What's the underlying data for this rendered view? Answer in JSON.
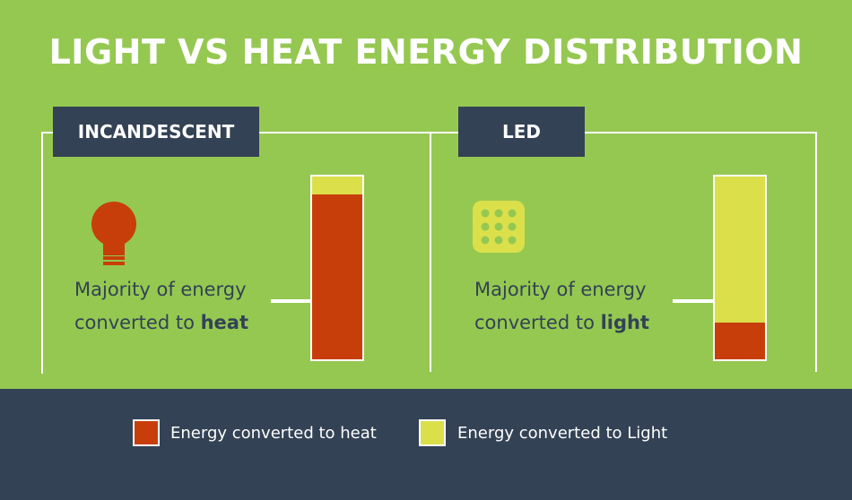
{
  "title": "LIGHT VS HEAT ENERGY DISTRIBUTION",
  "colors": {
    "background": "#95c851",
    "panel": "#334255",
    "heat": "#c83e0b",
    "light": "#dbe04a",
    "white": "#ffffff"
  },
  "panels": [
    {
      "label": "INCANDESCENT",
      "icon": "lightbulb-icon",
      "caption_line1": "Majority of energy",
      "caption_prefix": "converted to ",
      "caption_emphasis": "heat",
      "heat_fraction": 0.9,
      "light_fraction": 0.1
    },
    {
      "label": "LED",
      "icon": "led-grid-icon",
      "caption_line1": "Majority of energy",
      "caption_prefix": "converted to ",
      "caption_emphasis": "light",
      "heat_fraction": 0.2,
      "light_fraction": 0.8
    }
  ],
  "legend": {
    "heat_label": "Energy converted to heat",
    "light_label": "Energy converted to Light"
  }
}
